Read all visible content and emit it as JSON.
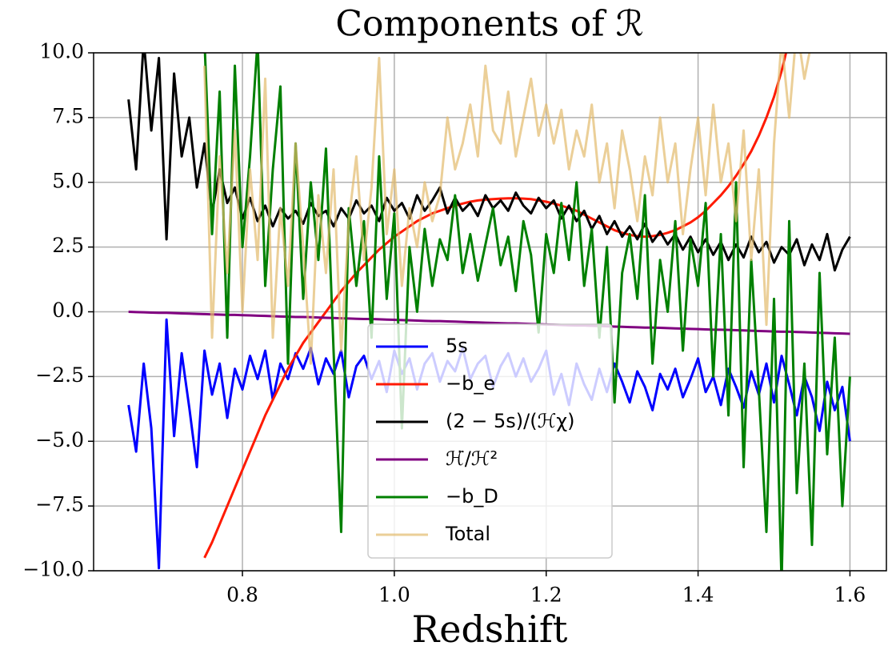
{
  "chart_data": {
    "type": "line",
    "title": "Components of ℛ",
    "xlabel": "Redshift",
    "xlim": [
      0.604,
      1.648
    ],
    "ylim": [
      -10,
      10
    ],
    "xticks": [
      0.8,
      {
        "value": 1.0,
        "label": "1.0"
      },
      1.2,
      1.4,
      1.6
    ],
    "yticks": [
      {
        "value": -10,
        "label": "−10.0"
      },
      {
        "value": -7.5,
        "label": "−7.5"
      },
      {
        "value": -5,
        "label": "−5.0"
      },
      {
        "value": -2.5,
        "label": "−2.5"
      },
      {
        "value": 0,
        "label": "0.0"
      },
      {
        "value": 2.5,
        "label": "2.5"
      },
      {
        "value": 5,
        "label": "5.0"
      },
      {
        "value": 7.5,
        "label": "7.5"
      },
      {
        "value": 10,
        "label": "10.0"
      }
    ],
    "grid": true,
    "legend": "lower center",
    "x": [
      0.65,
      0.66,
      0.67,
      0.68,
      0.69,
      0.7,
      0.71,
      0.72,
      0.73,
      0.74,
      0.75,
      0.76,
      0.77,
      0.78,
      0.79,
      0.8,
      0.81,
      0.82,
      0.83,
      0.84,
      0.85,
      0.86,
      0.87,
      0.88,
      0.89,
      0.9,
      0.91,
      0.92,
      0.93,
      0.94,
      0.95,
      0.96,
      0.97,
      0.98,
      0.99,
      1.0,
      1.01,
      1.02,
      1.03,
      1.04,
      1.05,
      1.06,
      1.07,
      1.08,
      1.09,
      1.1,
      1.11,
      1.12,
      1.13,
      1.14,
      1.15,
      1.16,
      1.17,
      1.18,
      1.19,
      1.2,
      1.21,
      1.22,
      1.23,
      1.24,
      1.25,
      1.26,
      1.27,
      1.28,
      1.29,
      1.3,
      1.31,
      1.32,
      1.33,
      1.34,
      1.35,
      1.36,
      1.37,
      1.38,
      1.39,
      1.4,
      1.41,
      1.42,
      1.43,
      1.44,
      1.45,
      1.46,
      1.47,
      1.48,
      1.49,
      1.5,
      1.51,
      1.52,
      1.53,
      1.54,
      1.55,
      1.56,
      1.57,
      1.58,
      1.59,
      1.6
    ],
    "series": [
      {
        "name": "5s",
        "color": "#0000ff",
        "values": [
          -3.6,
          -5.4,
          -2.0,
          -4.5,
          -9.9,
          -0.3,
          -4.8,
          -1.6,
          -3.7,
          -6.0,
          -1.5,
          -3.2,
          -2.0,
          -4.1,
          -2.2,
          -3.0,
          -1.7,
          -2.6,
          -1.5,
          -3.4,
          -2.0,
          -2.6,
          -1.6,
          -2.2,
          -1.4,
          -2.8,
          -1.8,
          -2.4,
          -1.5,
          -3.3,
          -2.1,
          -1.7,
          -2.6,
          -1.9,
          -3.1,
          -1.5,
          -2.4,
          -1.8,
          -3.0,
          -2.0,
          -1.6,
          -2.7,
          -1.9,
          -2.3,
          -1.4,
          -2.6,
          -2.0,
          -1.7,
          -2.9,
          -2.1,
          -1.6,
          -2.5,
          -1.8,
          -2.7,
          -2.2,
          -1.5,
          -3.2,
          -2.4,
          -3.6,
          -2.0,
          -2.8,
          -3.4,
          -2.2,
          -3.1,
          -2.0,
          -2.7,
          -3.5,
          -2.3,
          -2.9,
          -3.8,
          -2.4,
          -3.0,
          -2.2,
          -3.3,
          -2.6,
          -1.8,
          -3.1,
          -2.5,
          -3.6,
          -2.2,
          -2.9,
          -3.7,
          -2.3,
          -3.2,
          -2.0,
          -3.5,
          -1.7,
          -2.8,
          -4.0,
          -2.5,
          -3.3,
          -4.6,
          -2.7,
          -3.8,
          -2.9,
          -5.0
        ]
      },
      {
        "name": "−b_e",
        "color": "#ff1a00",
        "values": [
          null,
          null,
          null,
          null,
          null,
          null,
          null,
          null,
          null,
          null,
          -9.5,
          -8.9,
          -8.2,
          -7.5,
          -6.8,
          -6.1,
          -5.4,
          -4.7,
          -4.0,
          -3.4,
          -2.8,
          -2.2,
          -1.7,
          -1.2,
          -0.8,
          -0.4,
          0.0,
          0.4,
          0.8,
          1.15,
          1.5,
          1.8,
          2.1,
          2.4,
          2.65,
          2.9,
          3.1,
          3.3,
          3.5,
          3.65,
          3.8,
          3.9,
          4.0,
          4.1,
          4.18,
          4.25,
          4.3,
          4.33,
          4.35,
          4.37,
          4.38,
          4.38,
          4.37,
          4.35,
          4.3,
          4.25,
          4.18,
          4.1,
          4.0,
          3.9,
          3.75,
          3.6,
          3.45,
          3.3,
          3.15,
          3.05,
          2.97,
          2.92,
          2.9,
          2.92,
          2.97,
          3.05,
          3.15,
          3.3,
          3.45,
          3.65,
          3.9,
          4.2,
          4.5,
          4.85,
          5.25,
          5.7,
          6.2,
          6.8,
          7.5,
          8.3,
          9.3,
          10.5,
          null,
          null,
          null,
          null,
          null,
          null,
          null,
          null
        ]
      },
      {
        "name": "(2 − 5s)/(ℋχ)",
        "color": "#000000",
        "values": [
          8.2,
          5.5,
          10.5,
          7.0,
          9.8,
          2.8,
          9.2,
          6.0,
          7.5,
          4.8,
          6.5,
          3.8,
          5.5,
          4.2,
          4.8,
          3.6,
          4.4,
          3.5,
          4.1,
          3.3,
          4.0,
          3.6,
          3.9,
          3.4,
          4.2,
          3.7,
          3.9,
          3.3,
          4.0,
          3.6,
          4.3,
          3.8,
          4.1,
          3.5,
          4.4,
          3.9,
          4.2,
          3.6,
          4.5,
          3.9,
          4.3,
          4.8,
          3.8,
          4.4,
          3.9,
          4.2,
          3.7,
          4.5,
          4.0,
          4.3,
          3.9,
          4.6,
          4.1,
          3.8,
          4.4,
          4.0,
          4.3,
          3.6,
          4.1,
          3.5,
          3.9,
          3.2,
          3.7,
          3.0,
          3.5,
          2.9,
          3.3,
          2.8,
          3.4,
          2.7,
          3.1,
          2.6,
          3.0,
          2.4,
          2.9,
          2.3,
          2.8,
          2.2,
          2.7,
          2.0,
          2.6,
          2.1,
          2.9,
          2.3,
          2.7,
          1.9,
          2.5,
          2.2,
          2.8,
          1.8,
          2.6,
          2.0,
          3.0,
          1.6,
          2.4,
          2.9
        ]
      },
      {
        "name": "ℋ̇/ℋ²",
        "color": "#800080",
        "values": [
          0,
          -0.01,
          -0.02,
          -0.03,
          -0.04,
          -0.04,
          -0.05,
          -0.06,
          -0.07,
          -0.08,
          -0.09,
          -0.1,
          -0.11,
          -0.12,
          -0.12,
          -0.13,
          -0.14,
          -0.15,
          -0.16,
          -0.17,
          -0.18,
          -0.19,
          -0.2,
          -0.2,
          -0.21,
          -0.22,
          -0.23,
          -0.24,
          -0.25,
          -0.26,
          -0.27,
          -0.28,
          -0.28,
          -0.29,
          -0.3,
          -0.31,
          -0.32,
          -0.33,
          -0.34,
          -0.35,
          -0.36,
          -0.36,
          -0.37,
          -0.38,
          -0.39,
          -0.4,
          -0.41,
          -0.42,
          -0.43,
          -0.44,
          -0.45,
          -0.45,
          -0.46,
          -0.47,
          -0.48,
          -0.49,
          -0.5,
          -0.51,
          -0.52,
          -0.53,
          -0.53,
          -0.54,
          -0.55,
          -0.56,
          -0.57,
          -0.58,
          -0.59,
          -0.6,
          -0.61,
          -0.61,
          -0.62,
          -0.63,
          -0.64,
          -0.65,
          -0.66,
          -0.67,
          -0.68,
          -0.69,
          -0.69,
          -0.7,
          -0.71,
          -0.72,
          -0.73,
          -0.74,
          -0.75,
          -0.76,
          -0.77,
          -0.77,
          -0.78,
          -0.79,
          -0.8,
          -0.81,
          -0.82,
          -0.83,
          -0.84,
          -0.85
        ]
      },
      {
        "name": "−b_D",
        "color": "#008000",
        "values": [
          null,
          null,
          null,
          null,
          null,
          null,
          null,
          null,
          null,
          null,
          10.5,
          3.0,
          8.5,
          -1.0,
          9.5,
          2.5,
          6.0,
          10.5,
          1.0,
          5.5,
          8.7,
          -2.0,
          6.5,
          0.5,
          5.0,
          2.0,
          6.3,
          -1.5,
          -8.5,
          4.0,
          1.0,
          3.5,
          -1.0,
          6.0,
          0.5,
          3.8,
          -4.5,
          2.5,
          0.0,
          3.2,
          1.0,
          2.8,
          2.0,
          4.5,
          1.5,
          3.0,
          1.2,
          2.6,
          4.0,
          1.8,
          2.9,
          0.8,
          3.5,
          2.2,
          -0.8,
          3.0,
          1.5,
          4.2,
          2.0,
          5.0,
          1.0,
          3.2,
          -1.0,
          2.5,
          -3.5,
          1.5,
          3.0,
          0.5,
          4.5,
          -2.0,
          2.0,
          0.0,
          3.5,
          -1.5,
          2.8,
          1.0,
          4.2,
          -2.5,
          3.0,
          -4.0,
          5.0,
          -6.0,
          2.0,
          -3.0,
          -8.5,
          0.5,
          -10.5,
          3.5,
          -7.0,
          -2.0,
          -9.0,
          1.5,
          -5.5,
          -1.0,
          -7.5,
          -2.5
        ]
      },
      {
        "name": "Total",
        "color": "#e3bb6c",
        "alpha": 0.7,
        "values": [
          null,
          null,
          null,
          null,
          null,
          null,
          null,
          null,
          null,
          null,
          9.5,
          -1.0,
          6.0,
          1.5,
          7.0,
          0.0,
          5.5,
          2.0,
          9.0,
          -1.0,
          4.0,
          1.0,
          6.5,
          2.5,
          -2.0,
          4.5,
          1.5,
          5.5,
          -1.5,
          3.5,
          6.0,
          2.0,
          4.8,
          9.8,
          3.0,
          5.5,
          1.0,
          4.0,
          2.5,
          5.0,
          3.5,
          4.5,
          7.5,
          5.5,
          6.5,
          8.0,
          6.0,
          9.5,
          7.0,
          6.5,
          8.5,
          6.0,
          7.5,
          9.0,
          6.8,
          8.0,
          6.5,
          7.8,
          5.5,
          7.0,
          6.0,
          8.0,
          5.0,
          6.5,
          4.0,
          7.0,
          5.5,
          3.5,
          6.0,
          4.5,
          7.5,
          5.0,
          6.5,
          3.0,
          5.5,
          7.5,
          4.5,
          8.0,
          5.0,
          6.5,
          3.5,
          7.0,
          2.0,
          5.5,
          -0.5,
          6.5,
          10.5,
          7.5,
          11.0,
          9.0,
          10.5,
          null,
          null,
          null,
          null,
          null
        ]
      }
    ]
  }
}
